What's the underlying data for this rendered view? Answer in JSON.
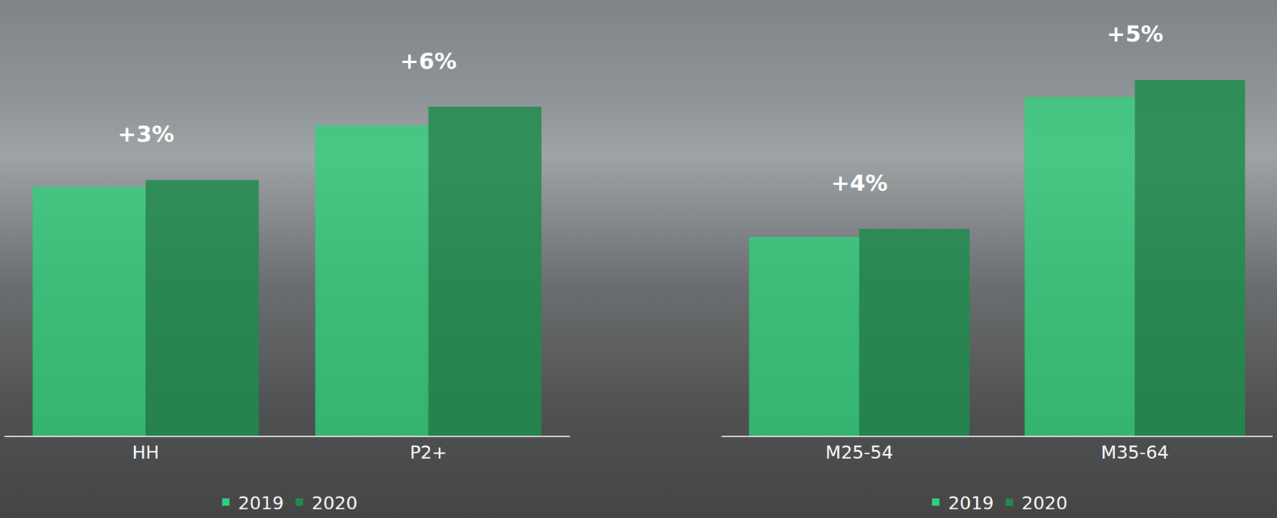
{
  "chart_data": [
    {
      "type": "bar",
      "categories": [
        "HH",
        "P2+"
      ],
      "series": [
        {
          "name": "2019",
          "color": "#2fd27a",
          "values": [
            306,
            381
          ]
        },
        {
          "name": "2020",
          "color": "#1e8c4e",
          "values": [
            314,
            404
          ]
        }
      ],
      "ylim": [
        0,
        520
      ],
      "tick_labels": "x",
      "grid": false,
      "legend": "bottom",
      "annotations": [
        {
          "text": "+3%",
          "category": "HH"
        },
        {
          "text": "+6%",
          "category": "P2+"
        }
      ]
    },
    {
      "type": "bar",
      "categories": [
        "M25-54",
        "M35-64"
      ],
      "series": [
        {
          "name": "2019",
          "color": "#2fd27a",
          "values": [
            244,
            416
          ]
        },
        {
          "name": "2020",
          "color": "#1e8c4e",
          "values": [
            254,
            437
          ]
        }
      ],
      "ylim": [
        0,
        520
      ],
      "tick_labels": "x",
      "grid": false,
      "legend": "bottom",
      "annotations": [
        {
          "text": "+4%",
          "category": "M25-54"
        },
        {
          "text": "+5%",
          "category": "M35-64"
        }
      ]
    }
  ]
}
